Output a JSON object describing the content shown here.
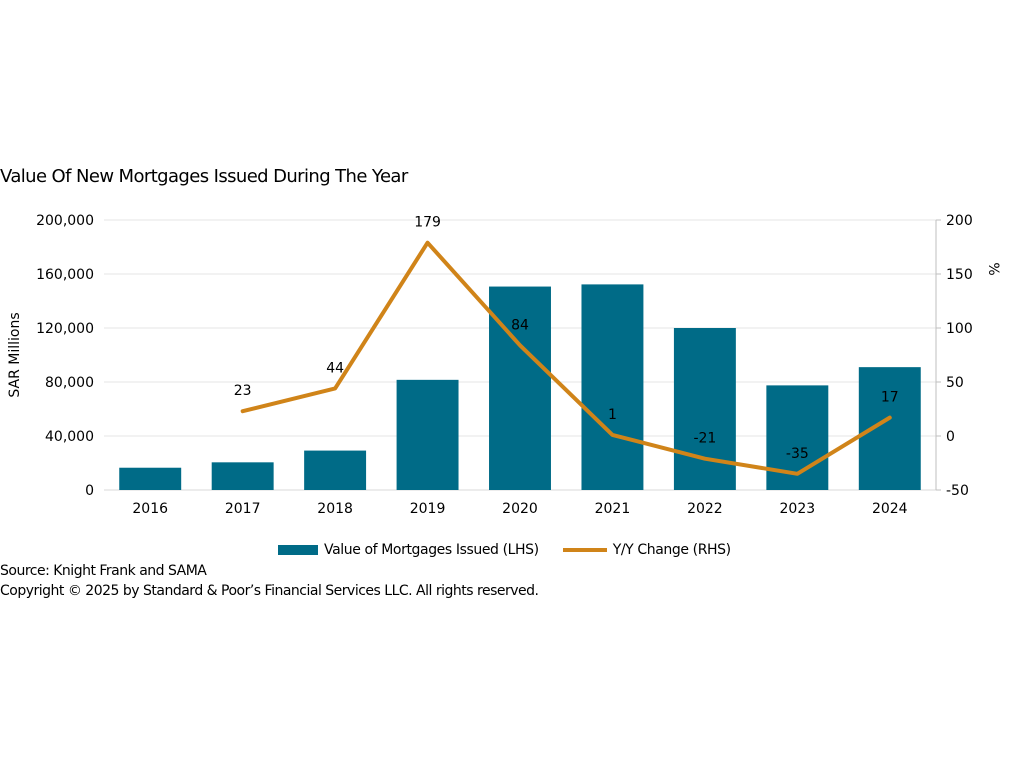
{
  "chart_data": {
    "type": "bar+line",
    "title": "Value Of New Mortgages Issued During The Year",
    "categories": [
      "2016",
      "2017",
      "2018",
      "2019",
      "2020",
      "2021",
      "2022",
      "2023",
      "2024"
    ],
    "series": [
      {
        "name": "Value of Mortgages Issued (LHS)",
        "type": "bar",
        "axis": "left",
        "color": "#006B87",
        "values": [
          16500,
          20500,
          29200,
          81600,
          150700,
          152300,
          120000,
          77500,
          91000
        ]
      },
      {
        "name": "Y/Y Change (RHS)",
        "type": "line",
        "axis": "right",
        "color": "#D08419",
        "values": [
          null,
          23,
          44,
          179,
          84,
          1,
          -21,
          -35,
          17
        ],
        "data_labels": [
          "",
          "23",
          "44",
          "179",
          "84",
          "1",
          "-21",
          "-35",
          "17"
        ]
      }
    ],
    "ylabel": "SAR Millions",
    "ylim": [
      0,
      200000
    ],
    "yticks": [
      "0",
      "40,000",
      "80,000",
      "120,000",
      "160,000",
      "200,000"
    ],
    "ytick_values": [
      0,
      40000,
      80000,
      120000,
      160000,
      200000
    ],
    "y2label": "%",
    "y2lim": [
      -50,
      200
    ],
    "y2ticks": [
      "-50",
      "0",
      "50",
      "100",
      "150",
      "200"
    ],
    "y2tick_values": [
      -50,
      0,
      50,
      100,
      150,
      200
    ],
    "grid": true,
    "legend": "bottom"
  },
  "footer": {
    "source": "Source: Knight Frank and SAMA",
    "copyright": "Copyright © 2025 by Standard & Poor’s Financial Services LLC. All rights reserved."
  }
}
